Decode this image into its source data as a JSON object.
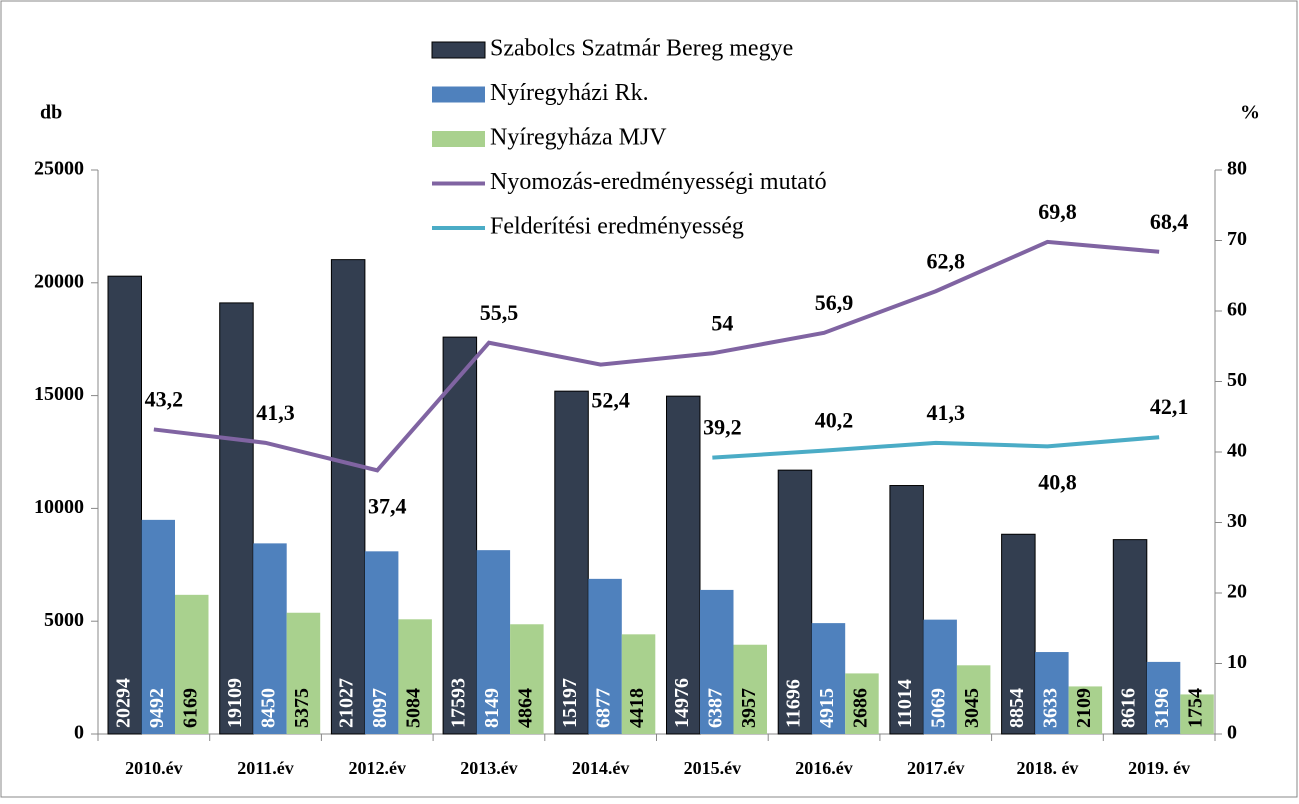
{
  "chart_data": {
    "type": "bar",
    "categories": [
      "2010.év",
      "2011.év",
      "2012.év",
      "2013.év",
      "2014.év",
      "2015.év",
      "2016.év",
      "2017.év",
      "2018. év",
      "2019. év"
    ],
    "ylabel": "db",
    "y2label": "%",
    "series": [
      {
        "name": "Szabolcs Szatmár Bereg megye",
        "color": "#333e50",
        "values": [
          20294,
          19109,
          21027,
          17593,
          15197,
          14976,
          11696,
          11014,
          8854,
          8616
        ]
      },
      {
        "name": "Nyíregyházi Rk.",
        "color": "#4f81bd",
        "values": [
          9492,
          8450,
          8097,
          8149,
          6877,
          6387,
          4915,
          5069,
          3633,
          3196
        ]
      },
      {
        "name": "Nyíregyháza MJV",
        "color": "#a9d18e",
        "values": [
          6169,
          5375,
          5084,
          4864,
          4418,
          3957,
          2686,
          3045,
          2109,
          1754
        ]
      },
      {
        "name": "Nyomozás-eredményességi mutató",
        "color": "#8064a2",
        "type": "line",
        "axis": "y2",
        "values": [
          43.2,
          41.3,
          37.4,
          55.5,
          52.4,
          54,
          56.9,
          62.8,
          69.8,
          68.4
        ],
        "value_labels": [
          "43,2",
          "41,3",
          "37,4",
          "55,5",
          "52,4",
          "54",
          "56,9",
          "62,8",
          "69,8",
          "68,4"
        ]
      },
      {
        "name": "Felderítési eredményesség",
        "color": "#4bacc6",
        "type": "line",
        "axis": "y2",
        "values": [
          null,
          null,
          null,
          null,
          null,
          39.2,
          40.2,
          41.3,
          40.8,
          42.1
        ],
        "value_labels": [
          null,
          null,
          null,
          null,
          null,
          "39,2",
          "40,2",
          "41,3",
          "40,8",
          "42,1"
        ]
      }
    ],
    "ylim": [
      0,
      25000
    ],
    "yticks": [
      0,
      5000,
      10000,
      15000,
      20000,
      25000
    ],
    "y2lim": [
      0,
      80
    ],
    "y2ticks": [
      0,
      10,
      20,
      30,
      40,
      50,
      60,
      70,
      80
    ],
    "legend": "top"
  }
}
